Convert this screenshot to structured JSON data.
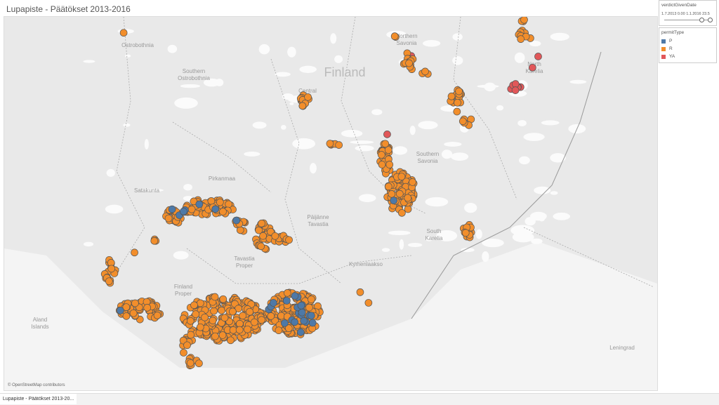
{
  "header": {
    "title": "Lupapiste - Päätökset 2013-2016"
  },
  "filter": {
    "title": "verdictGivenDate",
    "start": "1.7.2013 0.00",
    "end": "1.1.2016 23.5"
  },
  "legend": {
    "title": "permitType",
    "items": [
      {
        "label": "P",
        "color": "#4e79a7"
      },
      {
        "label": "R",
        "color": "#f28e2b"
      },
      {
        "label": "YA",
        "color": "#e15759"
      }
    ]
  },
  "map": {
    "labels": [
      "Ostrobothnia",
      "Southern Ostrobothnia",
      "Finland",
      "Northern Savonia",
      "North Karelia",
      "Central",
      "Southern Savonia",
      "Pirkanmaa",
      "Satakunta",
      "Päijänne Tavastia",
      "South Karelia",
      "Kymenlaakso",
      "Tavastia Proper",
      "Finland Proper",
      "Aland Islands",
      "Leningrad"
    ],
    "attribution": "© OpenStreetMap contributors"
  },
  "tabs": [
    "Lupapiste - Päätökset 2013-20..."
  ]
}
